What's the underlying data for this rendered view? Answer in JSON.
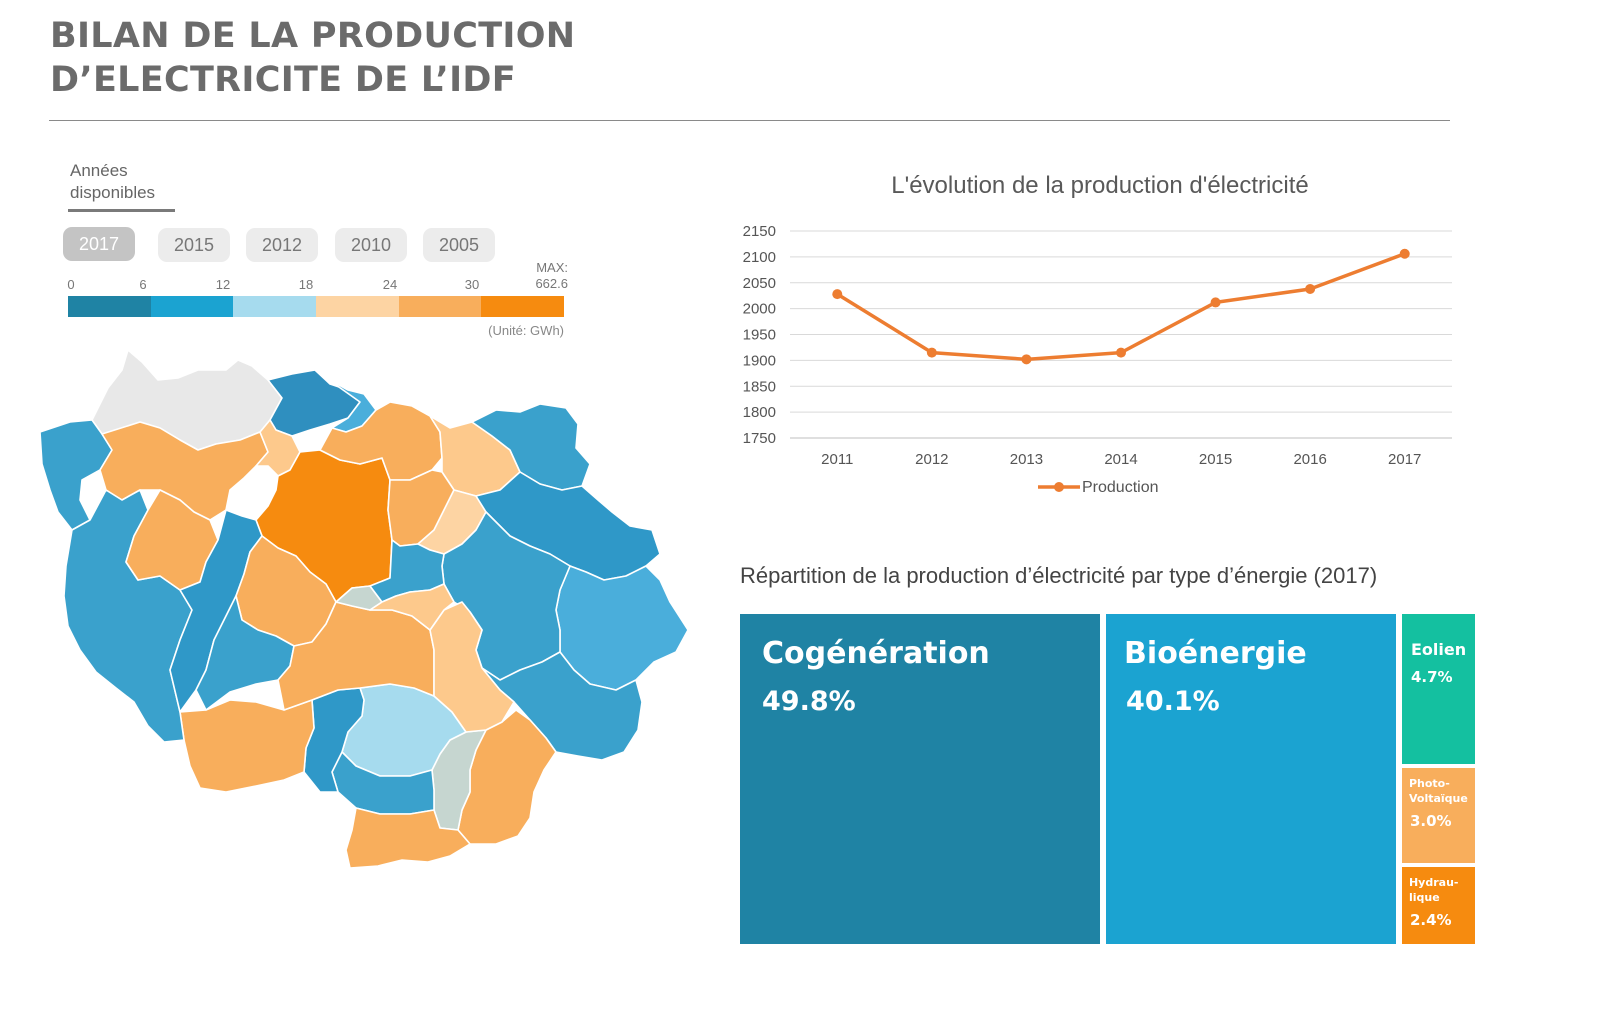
{
  "header": {
    "title_line1": "BILAN DE LA PRODUCTION",
    "title_line2": "D’ELECTRICITE DE L’IDF"
  },
  "year_selector": {
    "label_line1": "Années",
    "label_line2": "disponibles",
    "years": [
      "2017",
      "2015",
      "2012",
      "2010",
      "2005"
    ],
    "selected": "2017"
  },
  "map_legend": {
    "ticks": [
      "0",
      "6",
      "12",
      "18",
      "24",
      "30"
    ],
    "max_label": "MAX:",
    "max_value": "662.6",
    "unit": "(Unité: GWh)",
    "colors": [
      "#1f83a4",
      "#1ba3d1",
      "#a6dbee",
      "#fdd4a3",
      "#f8ae5c",
      "#f68b0f"
    ]
  },
  "colors": {
    "no_data": "#e8e8e8",
    "muted": "#c6d6d0",
    "mid_blue": "#4aaedb"
  },
  "chart_data": [
    {
      "type": "line",
      "title": "L'évolution de la production d'électricité",
      "x": [
        "2011",
        "2012",
        "2013",
        "2014",
        "2015",
        "2016",
        "2017"
      ],
      "series": [
        {
          "name": "Production",
          "values": [
            2028,
            1915,
            1902,
            1915,
            2012,
            2038,
            2106
          ],
          "color": "#ed7d31"
        }
      ],
      "ylim": [
        1750,
        2150
      ],
      "yticks": [
        "1750",
        "1800",
        "1850",
        "1900",
        "1950",
        "2000",
        "2050",
        "2100",
        "2150"
      ],
      "grid": true,
      "legend": "bottom"
    },
    {
      "type": "treemap",
      "title": "Répartition de la production d’électricité par type d’énergie (2017)",
      "items": [
        {
          "label": "Cogénération",
          "value": 49.8,
          "pct_label": "49.8%",
          "color": "#1f83a4"
        },
        {
          "label": "Bioénergie",
          "value": 40.1,
          "pct_label": "40.1%",
          "color": "#1ba3d1"
        },
        {
          "label": "Eolien",
          "value": 4.7,
          "pct_label": "4.7%",
          "color": "#14c0a0"
        },
        {
          "label": "Photo-Voltaïque",
          "label_lines": [
            "Photo-",
            "Voltaïque"
          ],
          "value": 3.0,
          "pct_label": "3.0%",
          "color": "#f8ae5c"
        },
        {
          "label": "Hydraulique",
          "label_lines": [
            "Hydrau-",
            "lique"
          ],
          "value": 2.4,
          "pct_label": "2.4%",
          "color": "#f68b0f"
        }
      ]
    }
  ]
}
